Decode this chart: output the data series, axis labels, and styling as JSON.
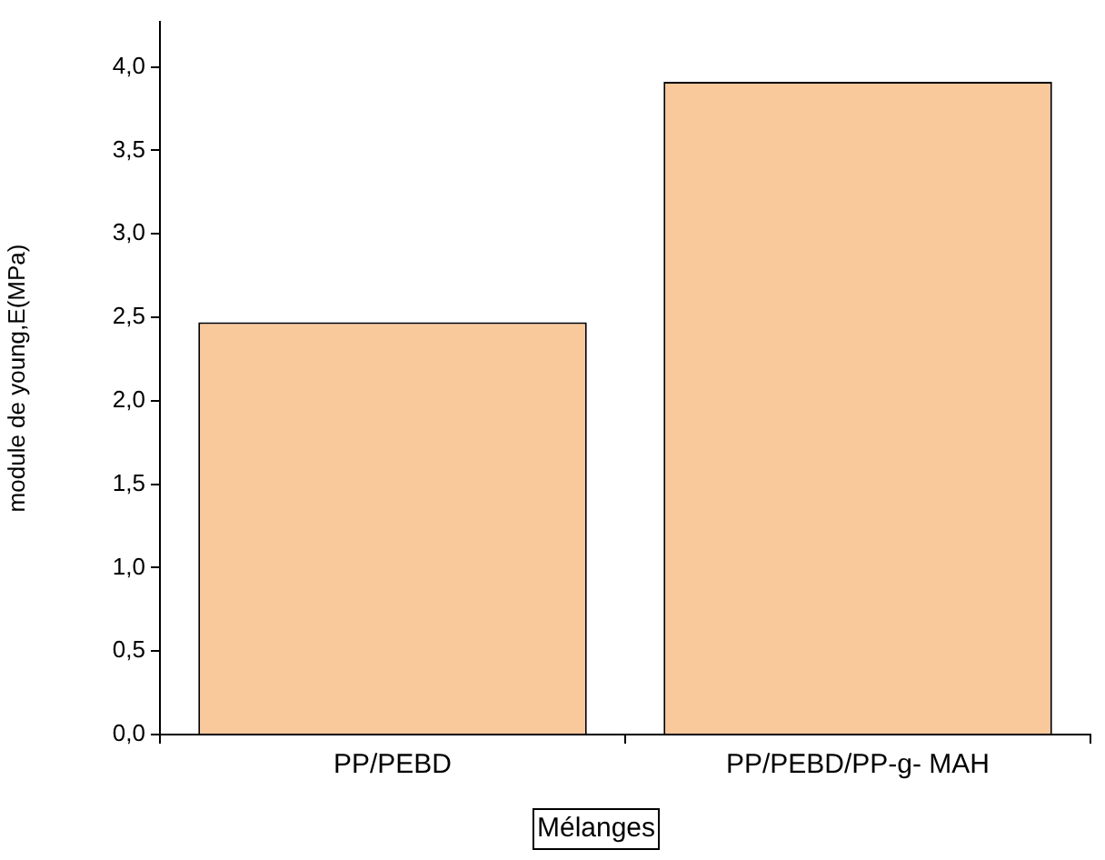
{
  "chart_data": {
    "type": "bar",
    "xlabel": "Mélanges",
    "ylabel": "module de young,E(MPa)",
    "categories": [
      "PP/PEBD",
      "PP/PEBD/PP-g- MAH"
    ],
    "series": [
      {
        "color": "#f9c89b",
        "values": [
          2.47,
          3.91
        ]
      }
    ],
    "ylim": [
      0,
      4.27
    ],
    "yticks": [
      {
        "value": 0,
        "label": "0,0"
      },
      {
        "value": 0.5,
        "label": "0,5"
      },
      {
        "value": 1,
        "label": "1,0"
      },
      {
        "value": 1.5,
        "label": "1,5"
      },
      {
        "value": 2,
        "label": "2,0"
      },
      {
        "value": 2.5,
        "label": "2,5"
      },
      {
        "value": 3,
        "label": "3,0"
      },
      {
        "value": 3.5,
        "label": "3,5"
      },
      {
        "value": 4,
        "label": "4,0"
      }
    ],
    "grid": false,
    "legend": false
  }
}
